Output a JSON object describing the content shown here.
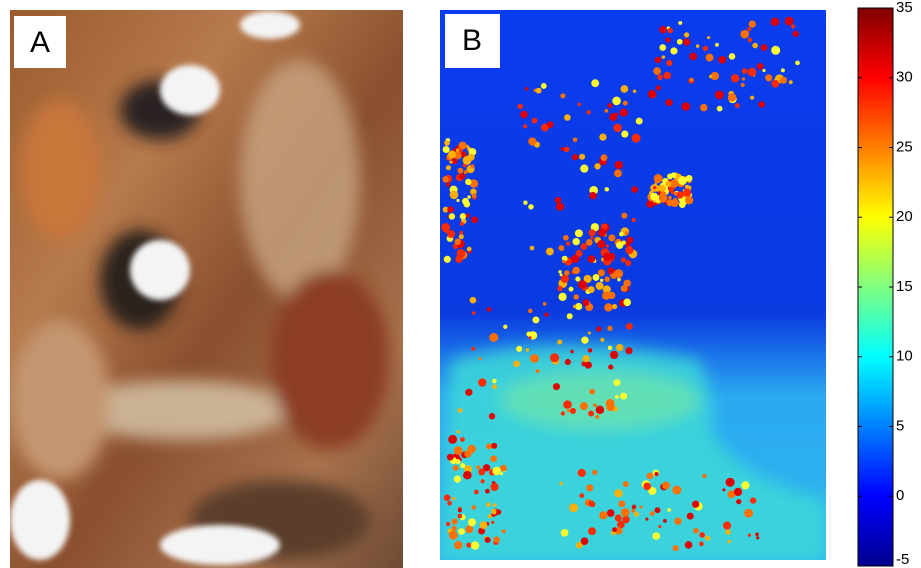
{
  "panels": [
    {
      "label": "A"
    },
    {
      "label": "B"
    }
  ],
  "colorbar": {
    "ylim": [
      -5,
      35
    ],
    "yticks": [
      -5,
      0,
      5,
      10,
      15,
      20,
      25,
      30,
      35
    ]
  }
}
